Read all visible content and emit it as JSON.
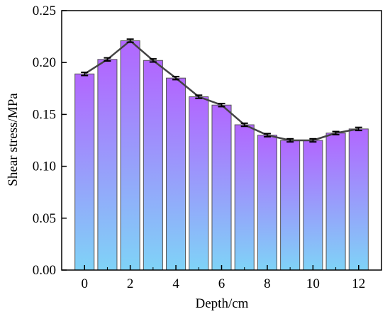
{
  "chart_data": {
    "type": "bar",
    "xlabel": "Depth/cm",
    "ylabel": "Shear stress/MPa",
    "x": [
      0,
      1,
      2,
      3,
      4,
      5,
      6,
      7,
      8,
      9,
      10,
      11,
      12
    ],
    "values": [
      0.189,
      0.203,
      0.221,
      0.202,
      0.185,
      0.167,
      0.159,
      0.14,
      0.13,
      0.125,
      0.125,
      0.132,
      0.136
    ],
    "errors": [
      0.0015,
      0.0015,
      0.0015,
      0.0015,
      0.0015,
      0.0015,
      0.0015,
      0.0015,
      0.0015,
      0.0015,
      0.0015,
      0.0015,
      0.0015
    ],
    "xticks": [
      "0",
      "2",
      "4",
      "6",
      "8",
      "10",
      "12"
    ],
    "xtick_values": [
      0,
      2,
      4,
      6,
      8,
      10,
      12
    ],
    "yticks": [
      "0.00",
      "0.05",
      "0.10",
      "0.15",
      "0.20",
      "0.25"
    ],
    "ytick_values": [
      0.0,
      0.05,
      0.1,
      0.15,
      0.2,
      0.25
    ],
    "xlim": [
      -1,
      13
    ],
    "ylim": [
      0,
      0.25
    ],
    "grid": false,
    "line_overlay": true,
    "colors": {
      "bar_top": "#b266ff",
      "bar_bottom": "#7fd3f7",
      "bar_edge": "#555555",
      "line": "#444444",
      "error_bar": "#000000",
      "axis": "#000000"
    }
  }
}
